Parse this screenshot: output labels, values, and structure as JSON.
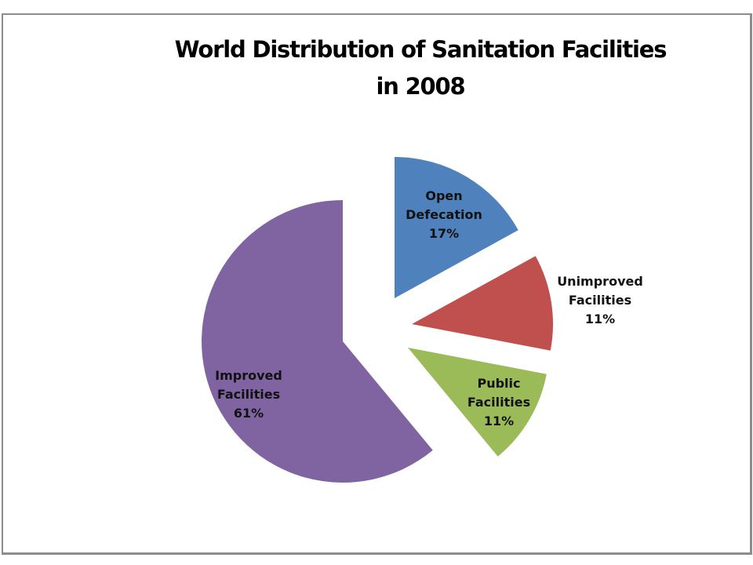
{
  "chart_data": {
    "type": "pie",
    "title": "World Distribution of Sanitation Facilities in 2008",
    "title_lines": [
      "World Distribution of Sanitation Facilities",
      "in 2008"
    ],
    "exploded": true,
    "slices": [
      {
        "name": "Open Defecation",
        "label_lines": [
          "Open",
          "Defecation",
          "17%"
        ],
        "value": 17,
        "color": "#4f81bd"
      },
      {
        "name": "Unimproved Facilities",
        "label_lines": [
          "Unimproved",
          "Facilities",
          "11%"
        ],
        "value": 11,
        "color": "#c0504d"
      },
      {
        "name": "Public Facilities",
        "label_lines": [
          "Public",
          "Facilities",
          "11%"
        ],
        "value": 11,
        "color": "#9bbb59"
      },
      {
        "name": "Improved Facilities",
        "label_lines": [
          "Improved",
          "Facilities",
          "61%"
        ],
        "value": 61,
        "color": "#8064a2"
      }
    ],
    "legend": "none"
  }
}
